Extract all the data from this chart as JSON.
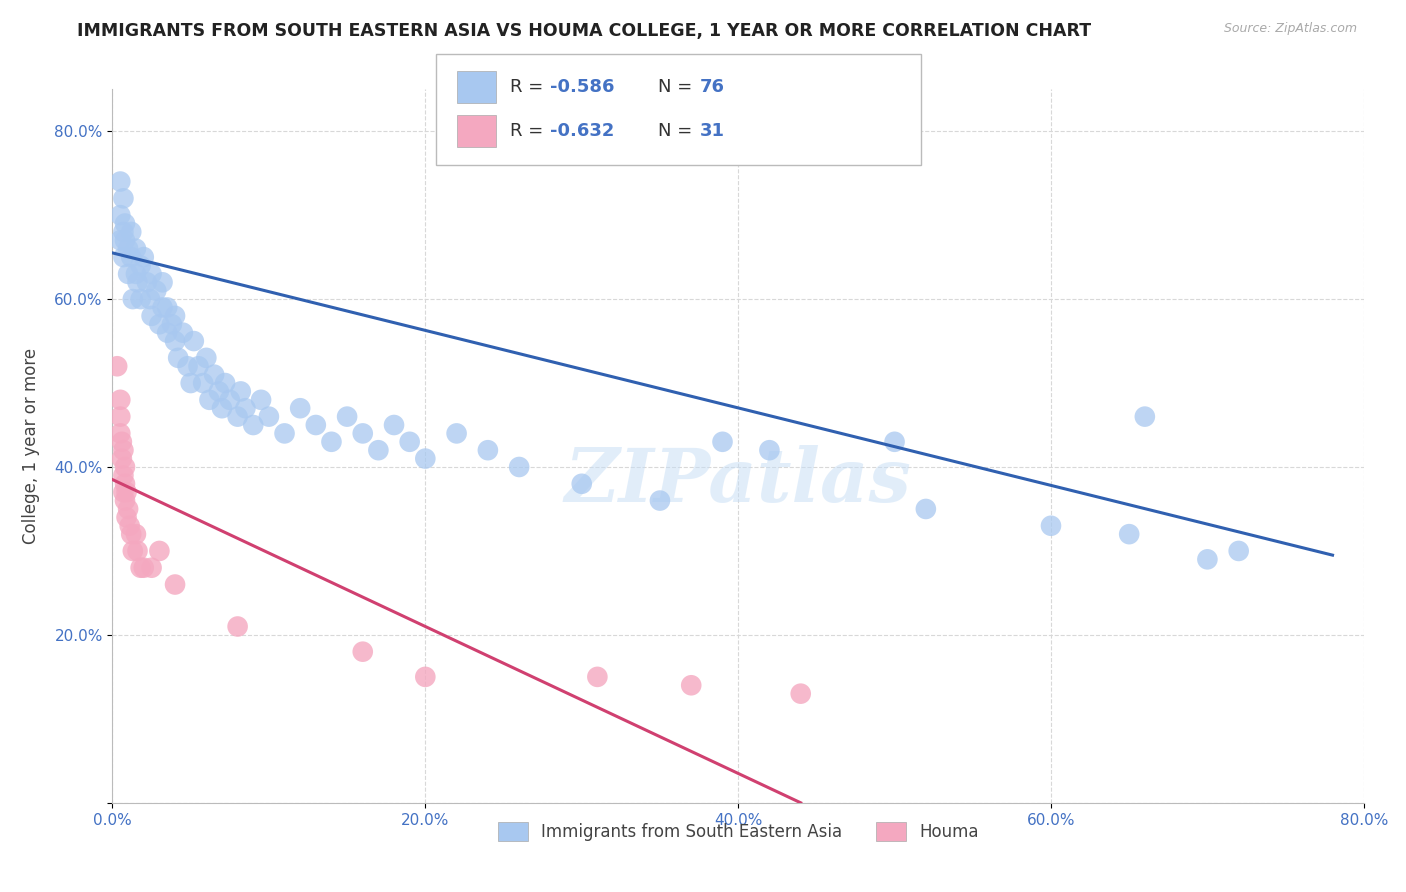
{
  "title": "IMMIGRANTS FROM SOUTH EASTERN ASIA VS HOUMA COLLEGE, 1 YEAR OR MORE CORRELATION CHART",
  "source": "Source: ZipAtlas.com",
  "ylabel": "College, 1 year or more",
  "xlim": [
    0.0,
    0.8
  ],
  "ylim": [
    0.0,
    0.85
  ],
  "x_ticks": [
    0.0,
    0.2,
    0.4,
    0.6,
    0.8
  ],
  "y_ticks": [
    0.0,
    0.2,
    0.4,
    0.6,
    0.8
  ],
  "x_tick_labels": [
    "0.0%",
    "20.0%",
    "40.0%",
    "60.0%",
    "80.0%"
  ],
  "y_tick_labels": [
    "",
    "20.0%",
    "40.0%",
    "60.0%",
    "80.0%"
  ],
  "blue_R": "-0.586",
  "blue_N": "76",
  "pink_R": "-0.632",
  "pink_N": "31",
  "blue_color": "#a8c8f0",
  "blue_line_color": "#3060b0",
  "pink_color": "#f4a8c0",
  "pink_line_color": "#d04070",
  "legend_label_blue": "Immigrants from South Eastern Asia",
  "legend_label_pink": "Houma",
  "background_color": "#ffffff",
  "grid_color": "#d8d8d8",
  "watermark": "ZIPatlas",
  "blue_line_x0": 0.0,
  "blue_line_y0": 0.655,
  "blue_line_x1": 0.78,
  "blue_line_y1": 0.295,
  "pink_line_x0": 0.0,
  "pink_line_y0": 0.385,
  "pink_line_x1": 0.44,
  "pink_line_y1": 0.0,
  "blue_points": [
    [
      0.005,
      0.74
    ],
    [
      0.005,
      0.7
    ],
    [
      0.005,
      0.67
    ],
    [
      0.007,
      0.72
    ],
    [
      0.007,
      0.68
    ],
    [
      0.007,
      0.65
    ],
    [
      0.008,
      0.69
    ],
    [
      0.008,
      0.67
    ],
    [
      0.01,
      0.63
    ],
    [
      0.01,
      0.66
    ],
    [
      0.012,
      0.65
    ],
    [
      0.012,
      0.68
    ],
    [
      0.013,
      0.6
    ],
    [
      0.015,
      0.63
    ],
    [
      0.015,
      0.66
    ],
    [
      0.016,
      0.62
    ],
    [
      0.018,
      0.64
    ],
    [
      0.018,
      0.6
    ],
    [
      0.02,
      0.65
    ],
    [
      0.022,
      0.62
    ],
    [
      0.024,
      0.6
    ],
    [
      0.025,
      0.63
    ],
    [
      0.025,
      0.58
    ],
    [
      0.028,
      0.61
    ],
    [
      0.03,
      0.57
    ],
    [
      0.032,
      0.59
    ],
    [
      0.032,
      0.62
    ],
    [
      0.035,
      0.56
    ],
    [
      0.035,
      0.59
    ],
    [
      0.038,
      0.57
    ],
    [
      0.04,
      0.55
    ],
    [
      0.04,
      0.58
    ],
    [
      0.042,
      0.53
    ],
    [
      0.045,
      0.56
    ],
    [
      0.048,
      0.52
    ],
    [
      0.05,
      0.5
    ],
    [
      0.052,
      0.55
    ],
    [
      0.055,
      0.52
    ],
    [
      0.058,
      0.5
    ],
    [
      0.06,
      0.53
    ],
    [
      0.062,
      0.48
    ],
    [
      0.065,
      0.51
    ],
    [
      0.068,
      0.49
    ],
    [
      0.07,
      0.47
    ],
    [
      0.072,
      0.5
    ],
    [
      0.075,
      0.48
    ],
    [
      0.08,
      0.46
    ],
    [
      0.082,
      0.49
    ],
    [
      0.085,
      0.47
    ],
    [
      0.09,
      0.45
    ],
    [
      0.095,
      0.48
    ],
    [
      0.1,
      0.46
    ],
    [
      0.11,
      0.44
    ],
    [
      0.12,
      0.47
    ],
    [
      0.13,
      0.45
    ],
    [
      0.14,
      0.43
    ],
    [
      0.15,
      0.46
    ],
    [
      0.16,
      0.44
    ],
    [
      0.17,
      0.42
    ],
    [
      0.18,
      0.45
    ],
    [
      0.19,
      0.43
    ],
    [
      0.2,
      0.41
    ],
    [
      0.22,
      0.44
    ],
    [
      0.24,
      0.42
    ],
    [
      0.26,
      0.4
    ],
    [
      0.3,
      0.38
    ],
    [
      0.35,
      0.36
    ],
    [
      0.39,
      0.43
    ],
    [
      0.42,
      0.42
    ],
    [
      0.5,
      0.43
    ],
    [
      0.52,
      0.35
    ],
    [
      0.6,
      0.33
    ],
    [
      0.65,
      0.32
    ],
    [
      0.66,
      0.46
    ],
    [
      0.7,
      0.29
    ],
    [
      0.72,
      0.3
    ]
  ],
  "pink_points": [
    [
      0.003,
      0.52
    ],
    [
      0.005,
      0.48
    ],
    [
      0.005,
      0.46
    ],
    [
      0.005,
      0.44
    ],
    [
      0.006,
      0.43
    ],
    [
      0.006,
      0.41
    ],
    [
      0.007,
      0.42
    ],
    [
      0.007,
      0.39
    ],
    [
      0.007,
      0.37
    ],
    [
      0.008,
      0.4
    ],
    [
      0.008,
      0.38
    ],
    [
      0.008,
      0.36
    ],
    [
      0.009,
      0.37
    ],
    [
      0.009,
      0.34
    ],
    [
      0.01,
      0.35
    ],
    [
      0.011,
      0.33
    ],
    [
      0.012,
      0.32
    ],
    [
      0.013,
      0.3
    ],
    [
      0.015,
      0.32
    ],
    [
      0.016,
      0.3
    ],
    [
      0.018,
      0.28
    ],
    [
      0.02,
      0.28
    ],
    [
      0.025,
      0.28
    ],
    [
      0.03,
      0.3
    ],
    [
      0.04,
      0.26
    ],
    [
      0.08,
      0.21
    ],
    [
      0.16,
      0.18
    ],
    [
      0.2,
      0.15
    ],
    [
      0.31,
      0.15
    ],
    [
      0.37,
      0.14
    ],
    [
      0.44,
      0.13
    ]
  ]
}
